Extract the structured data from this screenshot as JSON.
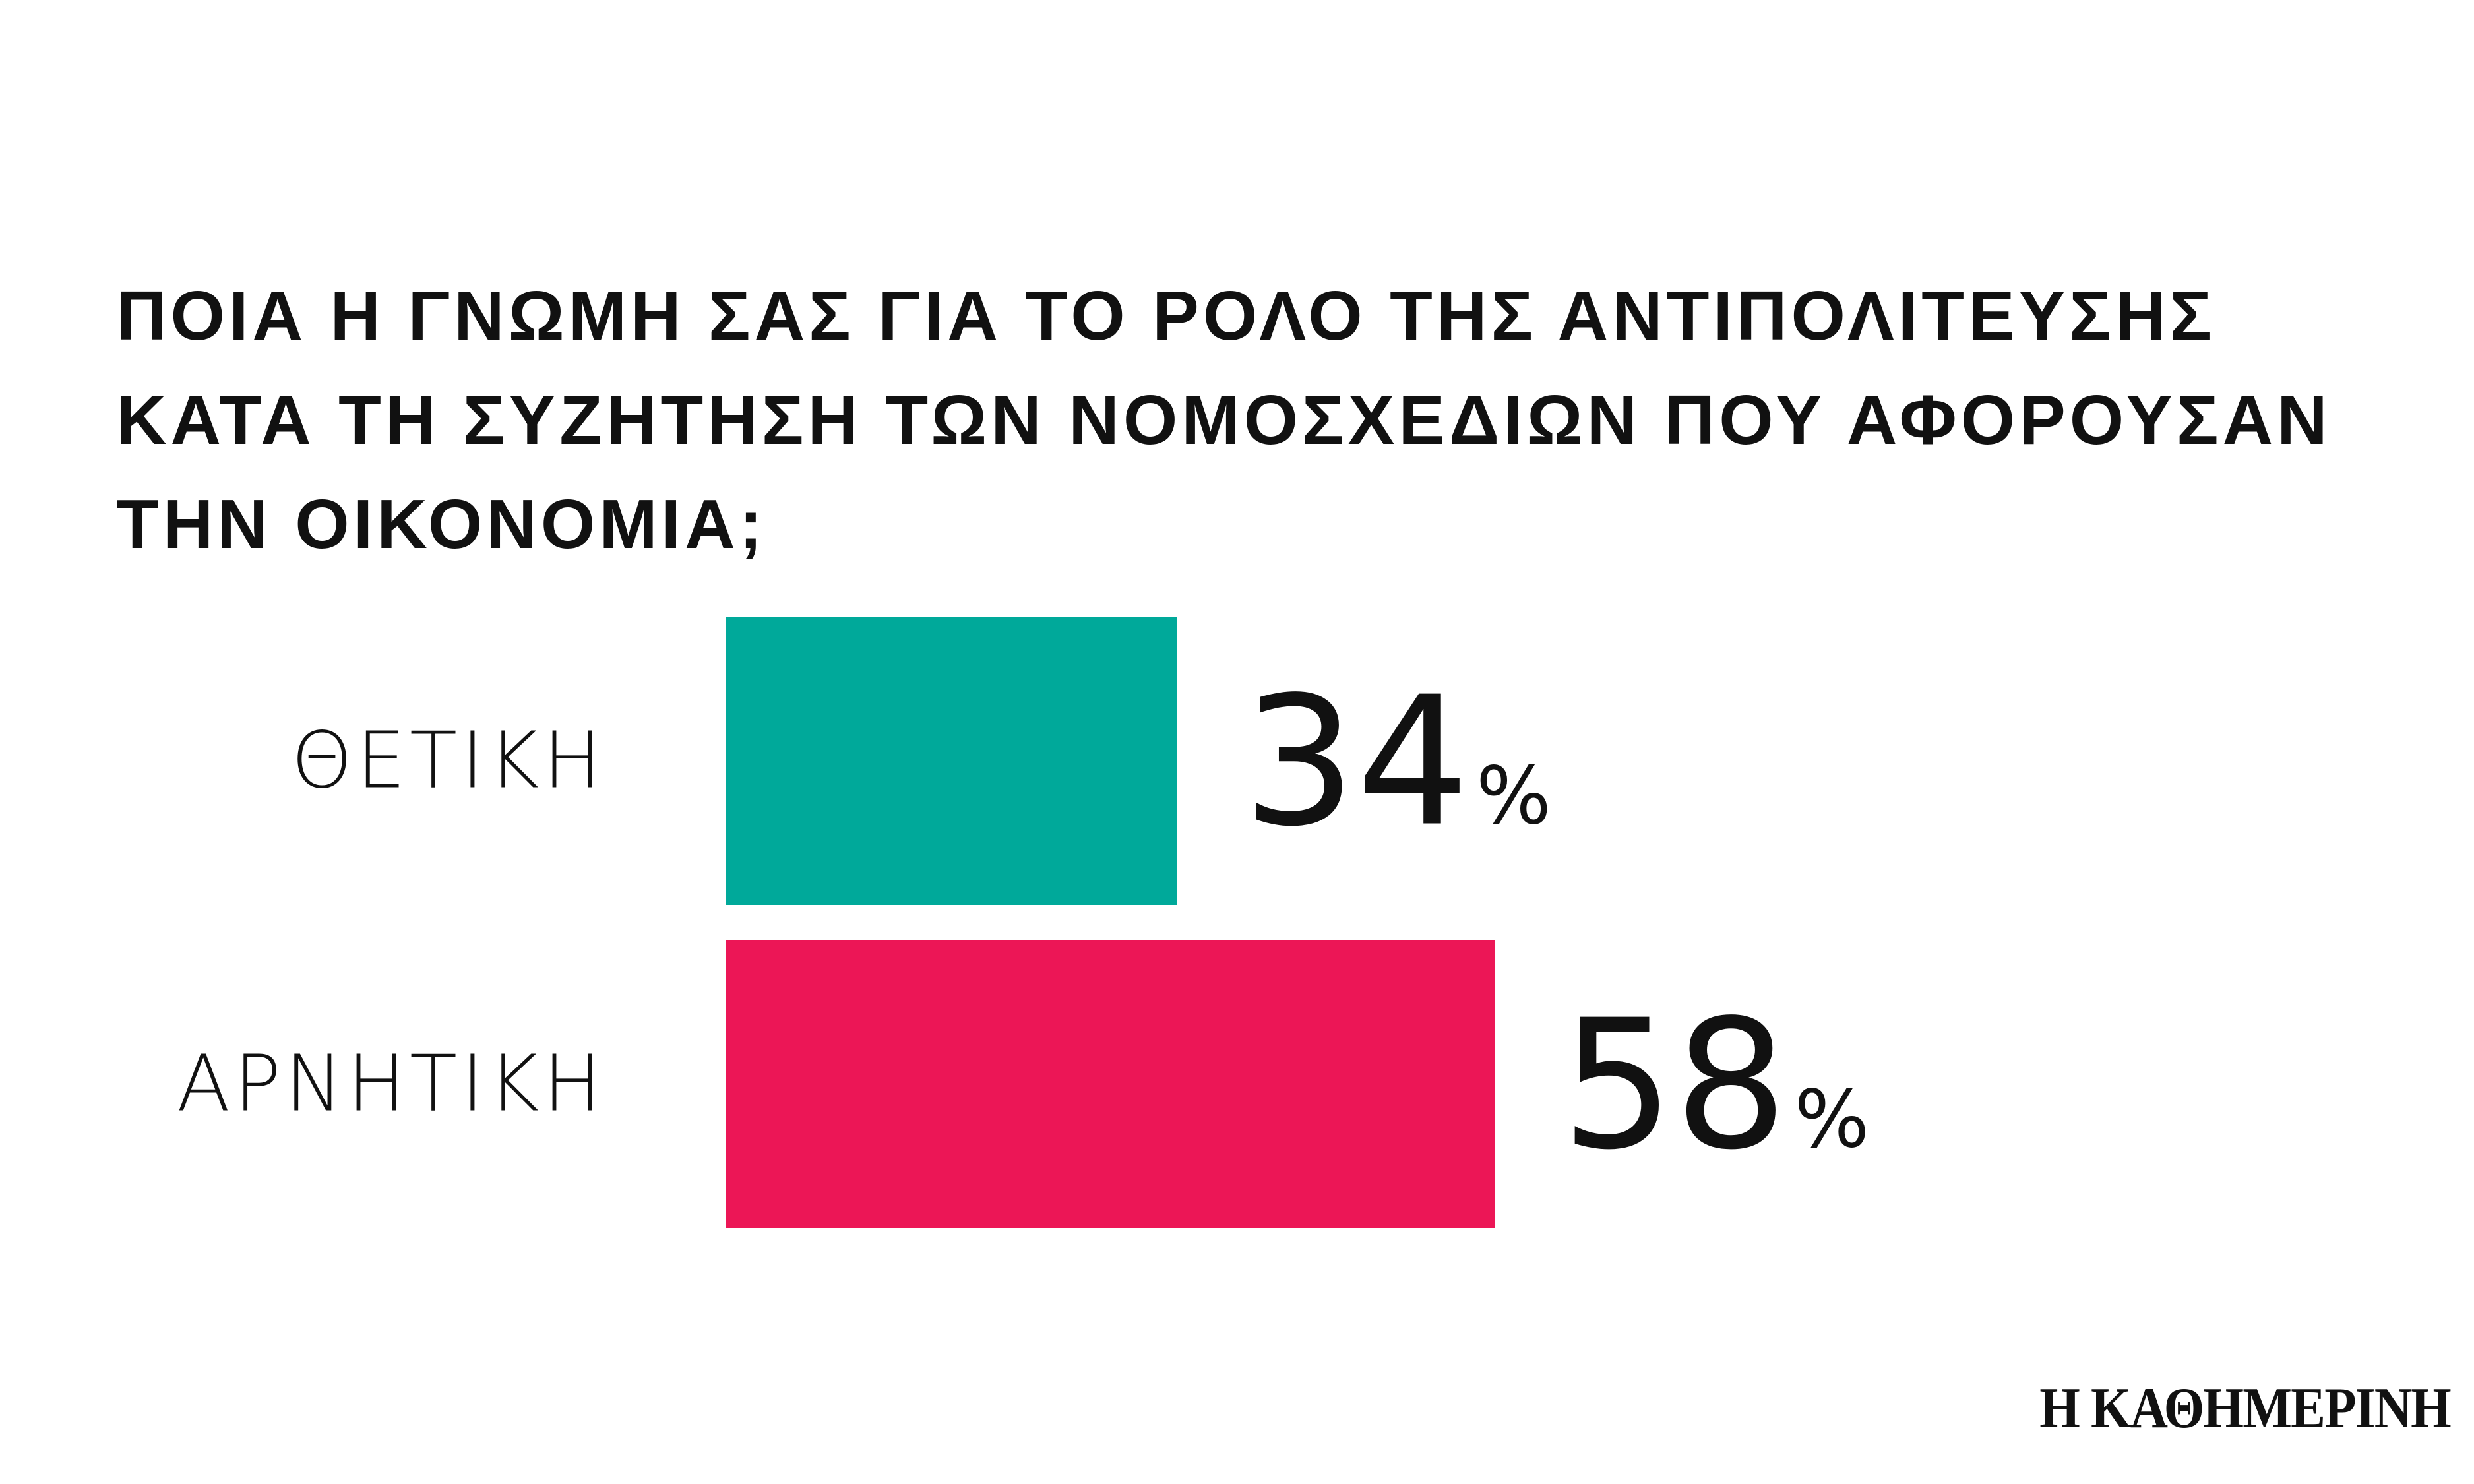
{
  "chart_data": {
    "type": "bar",
    "orientation": "horizontal",
    "title_lines": [
      "ΠΟΙΑ Η ΓΝΩΜΗ ΣΑΣ ΓΙΑ ΤΟ ΡΟΛΟ ΤΗΣ ΑΝΤΙΠΟΛΙΤΕΥΣΗΣ",
      "ΚΑΤΑ ΤΗ ΣΥΖΗΤΗΣΗ ΤΩΝ ΝΟΜΟΣΧΕΔΙΩΝ ΠΟΥ ΑΦΟΡΟΥΣΑΝ",
      "ΤΗΝ ΟΙΚΟΝΟΜΙΑ;"
    ],
    "categories": [
      "ΘΕΤΙΚΗ",
      "ΑΡΝΗΤΙΚΗ"
    ],
    "values": [
      34,
      58
    ],
    "value_labels": [
      "34",
      "58"
    ],
    "unit": "%",
    "colors": [
      "#00a99a",
      "#ec1656"
    ],
    "xlim": [
      0,
      100
    ],
    "grid": false,
    "legend": "none"
  },
  "branding": {
    "logo_text": "Η ΚΑΘΗΜΕΡΙΝΗ"
  }
}
